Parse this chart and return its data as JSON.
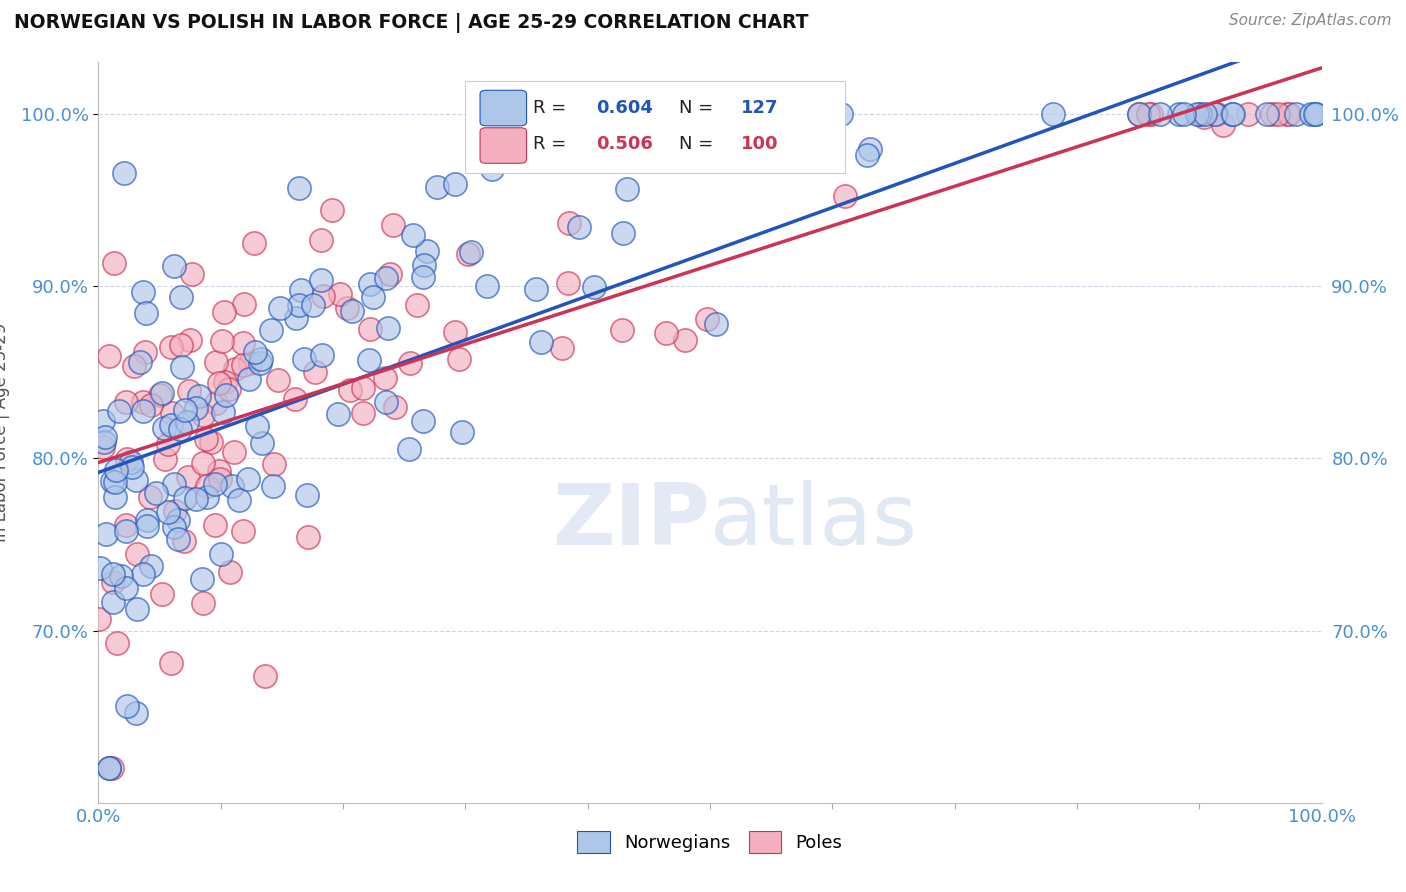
{
  "title": "NORWEGIAN VS POLISH IN LABOR FORCE | AGE 25-29 CORRELATION CHART",
  "source_text": "Source: ZipAtlas.com",
  "ylabel": "In Labor Force | Age 25-29",
  "xlim": [
    0.0,
    1.0
  ],
  "ylim": [
    0.6,
    1.03
  ],
  "x_tick_labels": [
    "0.0%",
    "100.0%"
  ],
  "y_tick_values": [
    0.7,
    0.8,
    0.9,
    1.0
  ],
  "y_tick_labels": [
    "70.0%",
    "80.0%",
    "90.0%",
    "100.0%"
  ],
  "norwegian_color": "#aec6e8",
  "polish_color": "#f4b0c0",
  "norwegian_R": 0.604,
  "norwegian_N": 127,
  "polish_R": 0.506,
  "polish_N": 100,
  "trend_norwegian_color": "#2255bb",
  "trend_polish_color": "#cc3355",
  "background_color": "#ffffff",
  "tick_color": "#4a90d0",
  "grid_color": "#d0d8e8",
  "title_color": "#111111",
  "source_color": "#888888",
  "ylabel_color": "#555555"
}
